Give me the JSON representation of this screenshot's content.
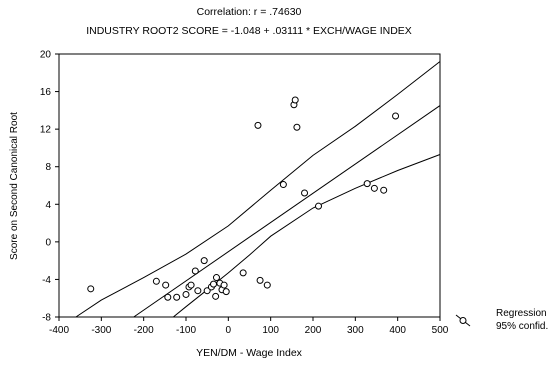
{
  "chart_data": {
    "type": "scatter",
    "title_line1": "Correlation: r = .74630",
    "title_line2": "INDUSTRY ROOT2 SCORE = -1.048 + .03111 * EXCH/WAGE INDEX",
    "xlabel": "YEN/DM - Wage Index",
    "ylabel": "Score on Second Canonical Root",
    "xlim": [
      -400,
      500
    ],
    "ylim": [
      -8,
      20
    ],
    "x_ticks": [
      -400,
      -300,
      -200,
      -100,
      0,
      100,
      200,
      300,
      400,
      500
    ],
    "y_ticks": [
      -8,
      -4,
      0,
      4,
      8,
      12,
      16,
      20
    ],
    "regression": {
      "intercept": -1.048,
      "slope": 0.03111
    },
    "confidence_band": {
      "upper": [
        [
          -360,
          -8
        ],
        [
          -300,
          -6.2
        ],
        [
          -200,
          -3.8
        ],
        [
          -100,
          -1.3
        ],
        [
          0,
          1.7
        ],
        [
          100,
          5.5
        ],
        [
          200,
          9.2
        ],
        [
          300,
          12.3
        ],
        [
          400,
          15.7
        ],
        [
          500,
          19.2
        ]
      ],
      "lower": [
        [
          -130,
          -8
        ],
        [
          -100,
          -6.9
        ],
        [
          -50,
          -5.1
        ],
        [
          0,
          -3.3
        ],
        [
          50,
          -1.4
        ],
        [
          100,
          0.6
        ],
        [
          200,
          3.6
        ],
        [
          300,
          5.7
        ],
        [
          400,
          7.6
        ],
        [
          500,
          9.3
        ]
      ]
    },
    "points": [
      [
        -325,
        -5.0
      ],
      [
        -170,
        -4.2
      ],
      [
        -148,
        -4.6
      ],
      [
        -143,
        -5.9
      ],
      [
        -122,
        -5.9
      ],
      [
        -100,
        -5.6
      ],
      [
        -93,
        -4.8
      ],
      [
        -88,
        -4.6
      ],
      [
        -78,
        -3.1
      ],
      [
        -72,
        -5.2
      ],
      [
        -57,
        -2.0
      ],
      [
        -50,
        -5.2
      ],
      [
        -40,
        -4.8
      ],
      [
        -35,
        -4.5
      ],
      [
        -30,
        -5.8
      ],
      [
        -28,
        -3.8
      ],
      [
        -20,
        -4.4
      ],
      [
        -15,
        -5.1
      ],
      [
        -10,
        -4.6
      ],
      [
        -5,
        -5.3
      ],
      [
        35,
        -3.3
      ],
      [
        70,
        12.4
      ],
      [
        75,
        -4.1
      ],
      [
        92,
        -4.6
      ],
      [
        130,
        6.1
      ],
      [
        155,
        14.6
      ],
      [
        158,
        15.1
      ],
      [
        162,
        12.2
      ],
      [
        180,
        5.2
      ],
      [
        213,
        3.8
      ],
      [
        328,
        6.2
      ],
      [
        345,
        5.7
      ],
      [
        367,
        5.5
      ],
      [
        395,
        13.4
      ]
    ],
    "legend": {
      "position": "right",
      "entries": [
        "Regression",
        "95% confid."
      ]
    }
  }
}
